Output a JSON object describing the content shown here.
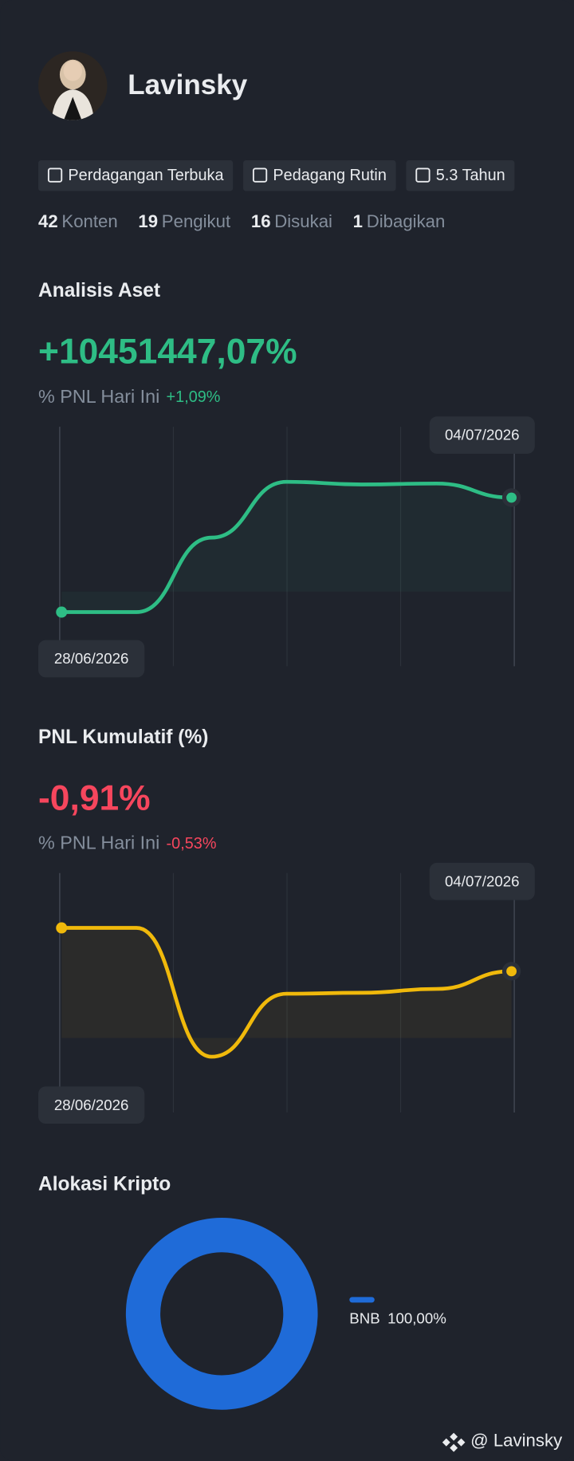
{
  "profile": {
    "name": "Lavinsky",
    "badges": [
      "Perdagangan Terbuka",
      "Pedagang Rutin",
      "5.3 Tahun"
    ],
    "stats": [
      {
        "count": 42,
        "label": "Konten"
      },
      {
        "count": 19,
        "label": "Pengikut"
      },
      {
        "count": 16,
        "label": "Disukai"
      },
      {
        "count": 1,
        "label": "Dibagikan"
      }
    ]
  },
  "chart_data": [
    {
      "type": "line",
      "title": "Analisis Aset",
      "headline": "+10451447,07%",
      "subtitle": "% PNL Hari Ini",
      "subtitle_value": "+1,09%",
      "x": [
        "28/06/2026",
        null,
        null,
        null,
        null,
        null,
        "04/07/2026"
      ],
      "series": [
        {
          "color": "#2ebd85",
          "values": [
            22.6,
            22.6,
            53.7,
            77,
            75.9,
            76.3,
            70.4
          ]
        }
      ],
      "ylim": [
        0,
        100
      ]
    },
    {
      "type": "line",
      "title": "PNL Kumulatif (%)",
      "headline": "-0,91%",
      "subtitle": "% PNL Hari Ini",
      "subtitle_value": "-0,53%",
      "x": [
        "28/06/2026",
        null,
        null,
        null,
        null,
        null,
        "04/07/2026"
      ],
      "series": [
        {
          "color": "#f0b90b",
          "values": [
            77.1,
            77.1,
            23.3,
            49.6,
            50,
            51.6,
            59
          ]
        }
      ],
      "ylim": [
        0,
        100
      ]
    },
    {
      "type": "pie",
      "title": "Alokasi Kripto",
      "categories": [
        "BNB"
      ],
      "values": [
        100
      ],
      "value_labels": [
        "100,00%"
      ],
      "colors": [
        "#1f6bd8"
      ]
    }
  ],
  "footer": "@ Lavinsky"
}
